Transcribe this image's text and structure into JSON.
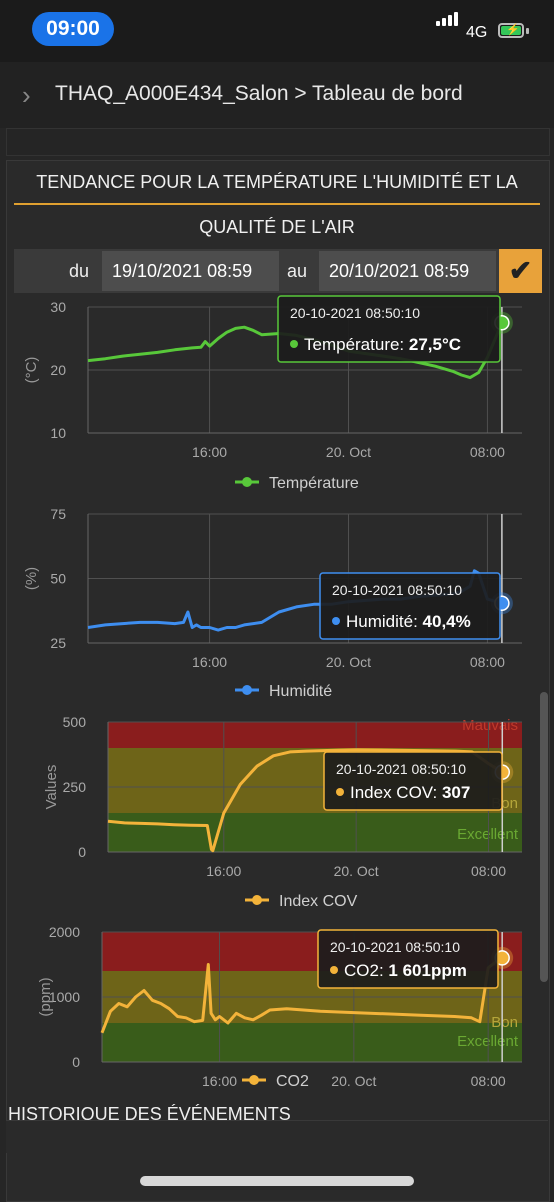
{
  "status": {
    "time": "09:00",
    "network": "4G"
  },
  "nav": {
    "breadcrumb": "THAQ_A000E434_Salon > Tableau de bord"
  },
  "panel": {
    "title_line1": "TENDANCE POUR LA TEMPÉRATURE L'HUMIDITÉ ET LA",
    "title_line2": "QUALITÉ DE L'AIR",
    "history_label": "HISTORIQUE DES ÉVÉNEMENTS"
  },
  "date_range": {
    "from_label": "du",
    "from_value": "19/10/2021 08:59",
    "to_label": "au",
    "to_value": "20/10/2021 08:59"
  },
  "colors": {
    "temperature": "#58c83a",
    "humidity": "#3e8ef0",
    "cov": "#f3b33a",
    "co2": "#f3b33a",
    "bad_band": "#8a1d1d",
    "moderate_band": "#6e6418",
    "good_band": "#395c1a",
    "accent": "#e0a030"
  },
  "chart_data": [
    {
      "type": "line",
      "series": [
        {
          "name": "Température",
          "x": [
            "09:00",
            "10:00",
            "11:00",
            "12:00",
            "13:00",
            "14:00",
            "15:00",
            "15:30",
            "15:45",
            "16:00",
            "16:30",
            "17:00",
            "17:30",
            "18:00",
            "18:30",
            "19:00",
            "20:00",
            "21:00",
            "22:00",
            "23:00",
            "00:00",
            "01:00",
            "02:00",
            "03:00",
            "04:00",
            "05:00",
            "06:00",
            "06:30",
            "07:00",
            "07:30",
            "08:00",
            "08:50"
          ],
          "y": [
            21.5,
            21.8,
            22.2,
            22.5,
            22.8,
            23.2,
            23.5,
            23.6,
            24.5,
            23.8,
            25.0,
            26.0,
            26.6,
            26.8,
            26.3,
            25.6,
            25.8,
            25.5,
            24.8,
            24.0,
            23.0,
            22.6,
            22.2,
            21.8,
            21.2,
            20.6,
            19.8,
            19.2,
            18.8,
            19.6,
            22.0,
            27.5
          ]
        }
      ],
      "ylabel": "(°C)",
      "ylim": [
        10,
        30
      ],
      "yticks": [
        "30",
        "20",
        "10"
      ],
      "xticks": [
        "16:00",
        "20. Oct",
        "08:00"
      ],
      "legend": "Température",
      "tooltip": {
        "date": "20-10-2021 08:50:10",
        "label": "Température:",
        "value": "27,5°C"
      }
    },
    {
      "type": "line",
      "series": [
        {
          "name": "Humidité",
          "x": [
            "09:00",
            "10:00",
            "11:00",
            "12:00",
            "13:00",
            "14:00",
            "14:30",
            "14:45",
            "15:00",
            "15:15",
            "15:30",
            "16:00",
            "16:30",
            "17:00",
            "17:30",
            "18:00",
            "19:00",
            "20:00",
            "21:00",
            "22:00",
            "23:00",
            "00:00",
            "01:00",
            "02:00",
            "03:00",
            "04:00",
            "05:00",
            "06:00",
            "06:30",
            "07:00",
            "07:15",
            "07:30",
            "08:00",
            "08:50"
          ],
          "y": [
            31,
            32,
            32.5,
            33,
            33,
            32.5,
            33,
            37,
            31,
            32,
            31,
            31,
            30,
            31,
            31,
            32,
            33,
            37,
            39,
            40,
            40,
            41,
            41.5,
            42,
            42,
            43,
            43.5,
            44,
            45,
            47,
            53,
            52,
            42,
            40.4
          ]
        }
      ],
      "ylabel": "(%)",
      "ylim": [
        25,
        75
      ],
      "yticks": [
        "75",
        "50",
        "25"
      ],
      "xticks": [
        "16:00",
        "20. Oct",
        "08:00"
      ],
      "legend": "Humidité",
      "tooltip": {
        "date": "20-10-2021 08:50:10",
        "label": "Humidité:",
        "value": "40,4%"
      }
    },
    {
      "type": "line",
      "series": [
        {
          "name": "Index COV",
          "x": [
            "09:00",
            "10:00",
            "11:00",
            "12:00",
            "13:00",
            "14:00",
            "15:00",
            "15:15",
            "15:20",
            "16:00",
            "17:00",
            "18:00",
            "19:00",
            "20:00",
            "21:00",
            "22:00",
            "23:00",
            "00:00",
            "02:00",
            "04:00",
            "06:00",
            "07:00",
            "08:00",
            "08:50"
          ],
          "y": [
            118,
            112,
            110,
            108,
            105,
            103,
            102,
            10,
            5,
            150,
            260,
            330,
            370,
            385,
            388,
            390,
            392,
            393,
            392,
            390,
            388,
            385,
            340,
            307
          ]
        }
      ],
      "ylabel": "Values",
      "ylim": [
        0,
        500
      ],
      "yticks": [
        "500",
        "250",
        "0"
      ],
      "xticks": [
        "16:00",
        "20. Oct",
        "08:00"
      ],
      "bands": [
        "Mauvais",
        "Bon",
        "Excellent"
      ],
      "legend": "Index COV",
      "tooltip": {
        "date": "20-10-2021 08:50:10",
        "label": "Index COV:",
        "value": "307"
      }
    },
    {
      "type": "line",
      "series": [
        {
          "name": "CO2",
          "x": [
            "09:00",
            "09:30",
            "10:00",
            "10:30",
            "11:00",
            "11:30",
            "12:00",
            "12:30",
            "13:00",
            "13:30",
            "14:00",
            "14:30",
            "15:00",
            "15:20",
            "15:30",
            "15:45",
            "16:00",
            "16:30",
            "17:00",
            "17:30",
            "18:00",
            "18:30",
            "19:00",
            "20:00",
            "22:00",
            "00:00",
            "02:00",
            "04:00",
            "06:00",
            "07:00",
            "07:30",
            "08:00",
            "08:30",
            "08:50"
          ],
          "y": [
            450,
            780,
            900,
            850,
            1000,
            1100,
            950,
            900,
            820,
            700,
            680,
            620,
            640,
            1500,
            750,
            650,
            700,
            600,
            750,
            680,
            650,
            720,
            800,
            820,
            780,
            760,
            740,
            720,
            700,
            680,
            620,
            1450,
            1550,
            1601
          ]
        }
      ],
      "ylabel": "(ppm)",
      "ylim": [
        0,
        2000
      ],
      "yticks": [
        "2000",
        "1000",
        "0"
      ],
      "xticks": [
        "16:00",
        "20. Oct",
        "08:00"
      ],
      "bands": [
        "Bon",
        "Excellent"
      ],
      "legend": "CO2",
      "tooltip": {
        "date": "20-10-2021 08:50:10",
        "label": "CO2:",
        "value": "1 601ppm"
      }
    }
  ]
}
